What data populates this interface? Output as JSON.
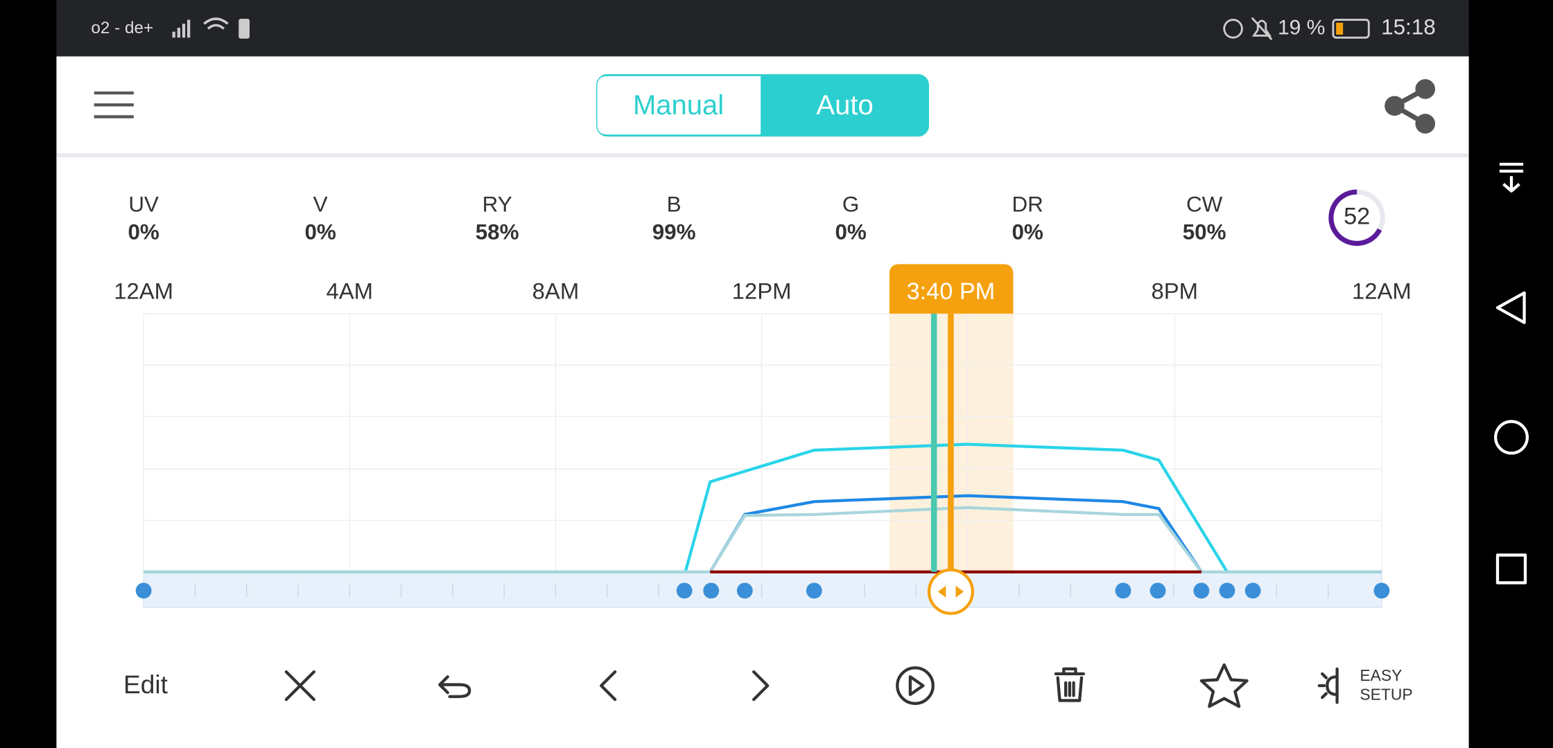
{
  "status": {
    "carrier": "o2 - de+",
    "battery": "19 %",
    "time": "15:18"
  },
  "mode_toggle": {
    "options": [
      "Manual",
      "Auto"
    ]
  },
  "channels": [
    {
      "label": "UV",
      "value": "0%"
    },
    {
      "label": "V",
      "value": "0%"
    },
    {
      "label": "RY",
      "value": "58%"
    },
    {
      "label": "B",
      "value": "99%"
    },
    {
      "label": "G",
      "value": "0%"
    },
    {
      "label": "DR",
      "value": "0%"
    },
    {
      "label": "CW",
      "value": "50%"
    }
  ],
  "gauge": "52",
  "timeline": {
    "labels": [
      "12AM",
      "4AM",
      "8AM",
      "12PM",
      "8PM",
      "12AM"
    ],
    "cursor": "3:40 PM"
  },
  "toolbar": {
    "edit": "Edit",
    "easy_setup": [
      "EASY",
      "SETUP"
    ]
  }
}
